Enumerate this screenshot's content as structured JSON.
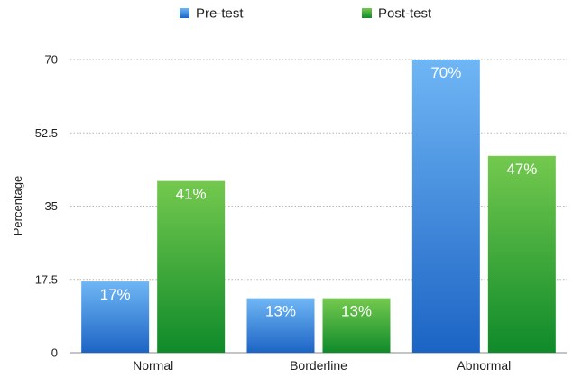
{
  "chart_data": {
    "type": "bar",
    "title": "",
    "xlabel": "",
    "ylabel": "Percentage",
    "categories": [
      "Normal",
      "Borderline",
      "Abnormal"
    ],
    "series": [
      {
        "name": "Pre-test",
        "values": [
          17,
          13,
          70
        ],
        "labels": [
          "17%",
          "13%",
          "70%"
        ]
      },
      {
        "name": "Post-test",
        "values": [
          41,
          13,
          47
        ],
        "labels": [
          "41%",
          "13%",
          "47%"
        ]
      }
    ],
    "yticks": [
      0,
      17.5,
      35,
      52.5,
      70
    ],
    "ytick_labels": [
      "0",
      "17.5",
      "35",
      "52.5",
      "70"
    ],
    "ylim": [
      0,
      70
    ],
    "grid": true,
    "legend_position": "top-center",
    "colors": {
      "Pre-test": [
        "#6fb6f5",
        "#1c64c4"
      ],
      "Post-test": [
        "#74c94e",
        "#0f8a2a"
      ]
    }
  }
}
